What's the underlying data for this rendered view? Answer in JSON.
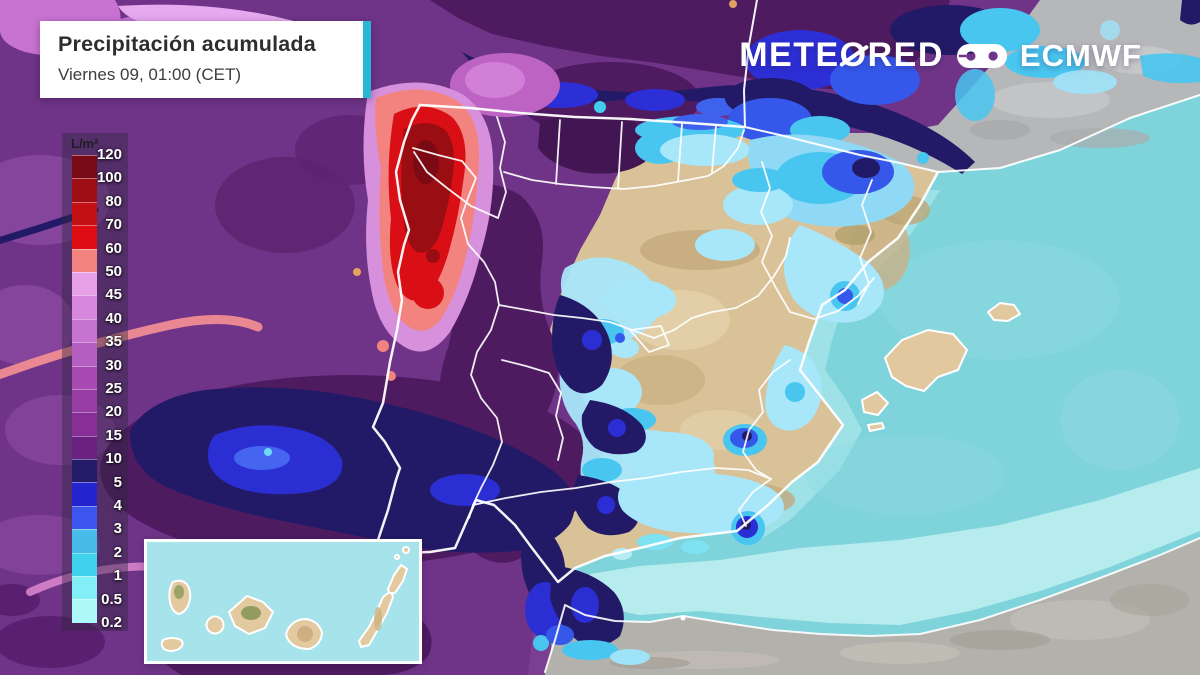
{
  "header": {
    "title": "Precipitación acumulada",
    "subtitle": "Viernes 09, 01:00 (CET)",
    "accent_color": "#26b8d4"
  },
  "branding": {
    "meteored_prefix": "METE",
    "meteored_o": "O",
    "meteored_suffix": "RED",
    "partner": "ECMWF"
  },
  "legend": {
    "unit": "L/m²",
    "labels": [
      "120",
      "100",
      "80",
      "70",
      "60",
      "50",
      "45",
      "40",
      "35",
      "30",
      "25",
      "20",
      "15",
      "10",
      "5",
      "4",
      "3",
      "2",
      "1",
      "0.5",
      "0.2"
    ],
    "colors": [
      "#7a0b16",
      "#9d0e15",
      "#c21015",
      "#de0d13",
      "#f3837e",
      "#e79fe6",
      "#d787dd",
      "#c673d0",
      "#b55fc2",
      "#a74bb3",
      "#993da6",
      "#872f97",
      "#6b2180",
      "#231b67",
      "#2424cf",
      "#3c55ec",
      "#47bce9",
      "#3ed2ec",
      "#82eef5",
      "#aef8fa"
    ]
  },
  "map": {
    "land_iberia": "#d9c298",
    "land_france": "#b6b7b9",
    "land_africa": "#b3b1ac",
    "sea": "#7fd3da",
    "inset_sea": "#a7e3ea"
  }
}
